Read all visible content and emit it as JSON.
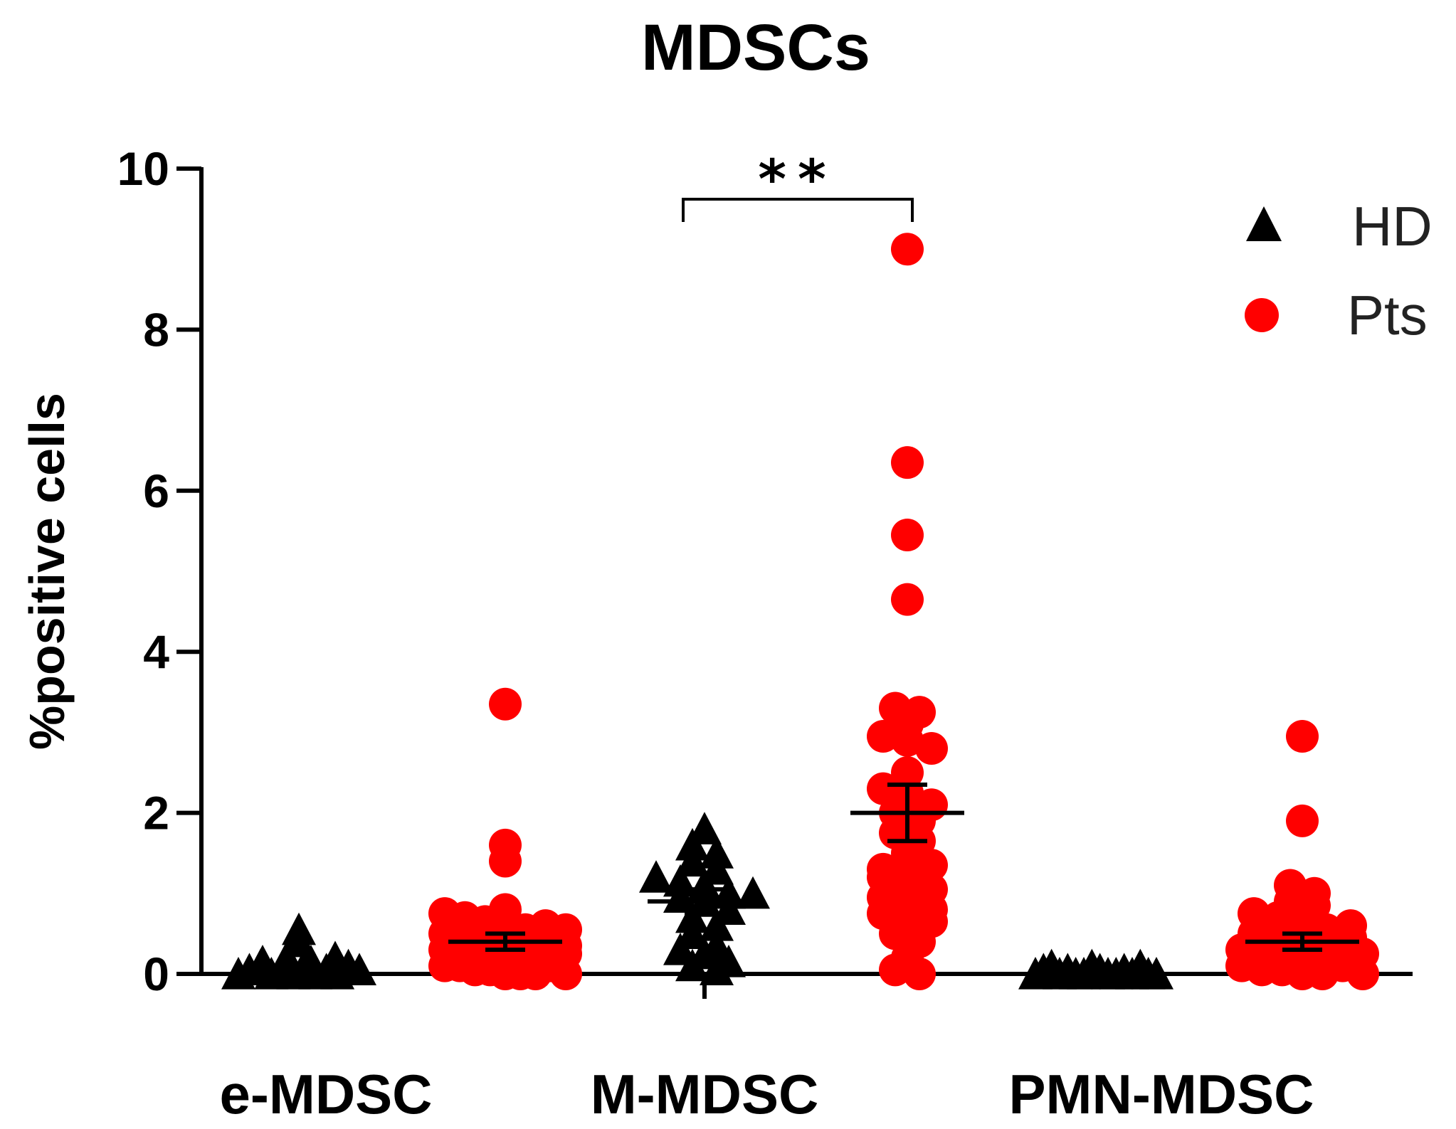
{
  "chart_data": {
    "type": "scatter",
    "title": "MDSCs",
    "xlabel": "",
    "ylabel": "%positive cells",
    "ylim": [
      0,
      10
    ],
    "yticks": [
      "0",
      "2",
      "4",
      "6",
      "8",
      "10"
    ],
    "categories": [
      "e-MDSC",
      "M-MDSC",
      "PMN-MDSC"
    ],
    "legend": {
      "placement": "top-right",
      "entries": [
        {
          "name": "HD",
          "marker": "triangle",
          "color": "#000000"
        },
        {
          "name": "Pts",
          "marker": "circle",
          "color": "#ff0000"
        }
      ]
    },
    "series": [
      {
        "name": "HD",
        "groups": [
          {
            "category": "e-MDSC",
            "mean": 0.05,
            "sem": 0.04,
            "values": [
              0.0,
              0.05,
              0.15,
              0.1,
              0.0,
              0.55,
              0.4,
              0.2,
              0.05,
              0.0,
              0.1,
              0.15,
              0.0,
              0.2,
              0.05,
              0.0,
              0.1,
              0.05
            ]
          },
          {
            "category": "M-MDSC",
            "mean": 0.9,
            "sem": 0.15,
            "values": [
              1.8,
              1.6,
              1.4,
              1.3,
              1.2,
              1.15,
              1.1,
              1.0,
              0.95,
              0.9,
              0.8,
              0.7,
              0.6,
              0.5,
              0.35,
              0.3,
              0.25,
              0.15,
              0.1,
              0.05,
              1.0,
              1.5
            ]
          },
          {
            "category": "PMN-MDSC",
            "mean": 0.0,
            "sem": 0.02,
            "values": [
              0.0,
              0.05,
              0.1,
              0.0,
              0.05,
              0.0,
              0.0,
              0.1,
              0.05,
              0.0,
              0.0,
              0.05,
              0.0,
              0.1,
              0.0,
              0.0
            ]
          }
        ]
      },
      {
        "name": "Pts",
        "groups": [
          {
            "category": "e-MDSC",
            "mean": 0.4,
            "sem": 0.1,
            "values": [
              3.35,
              1.6,
              1.4,
              0.8,
              0.75,
              0.7,
              0.65,
              0.6,
              0.55,
              0.5,
              0.45,
              0.4,
              0.35,
              0.3,
              0.3,
              0.25,
              0.2,
              0.2,
              0.15,
              0.1,
              0.1,
              0.05,
              0.05,
              0.0,
              0.0,
              0.0,
              0.3,
              0.6,
              0.45,
              0.1,
              0.2,
              0.35,
              0.55,
              0.0,
              0.25
            ]
          },
          {
            "category": "M-MDSC",
            "mean": 2.0,
            "sem": 0.35,
            "values": [
              9.0,
              6.35,
              5.45,
              4.65,
              3.3,
              3.25,
              3.1,
              2.95,
              2.9,
              2.8,
              2.5,
              2.3,
              2.25,
              2.0,
              1.9,
              1.75,
              1.65,
              1.5,
              1.3,
              1.25,
              1.2,
              1.1,
              1.05,
              0.95,
              0.85,
              0.8,
              0.75,
              0.7,
              0.65,
              0.5,
              0.4,
              0.2,
              0.05,
              0.0,
              1.35,
              2.1
            ]
          },
          {
            "category": "PMN-MDSC",
            "mean": 0.4,
            "sem": 0.1,
            "values": [
              2.95,
              1.9,
              1.1,
              1.0,
              0.9,
              0.85,
              0.75,
              0.7,
              0.6,
              0.55,
              0.5,
              0.45,
              0.4,
              0.35,
              0.3,
              0.25,
              0.2,
              0.2,
              0.15,
              0.1,
              0.05,
              0.05,
              0.0,
              0.0,
              0.3,
              0.6,
              0.45,
              0.1,
              0.25,
              0.0
            ]
          }
        ]
      }
    ],
    "annotations": [
      {
        "text": "**",
        "type": "significance-bracket",
        "category": "M-MDSC",
        "between": [
          "HD",
          "Pts"
        ]
      }
    ]
  }
}
